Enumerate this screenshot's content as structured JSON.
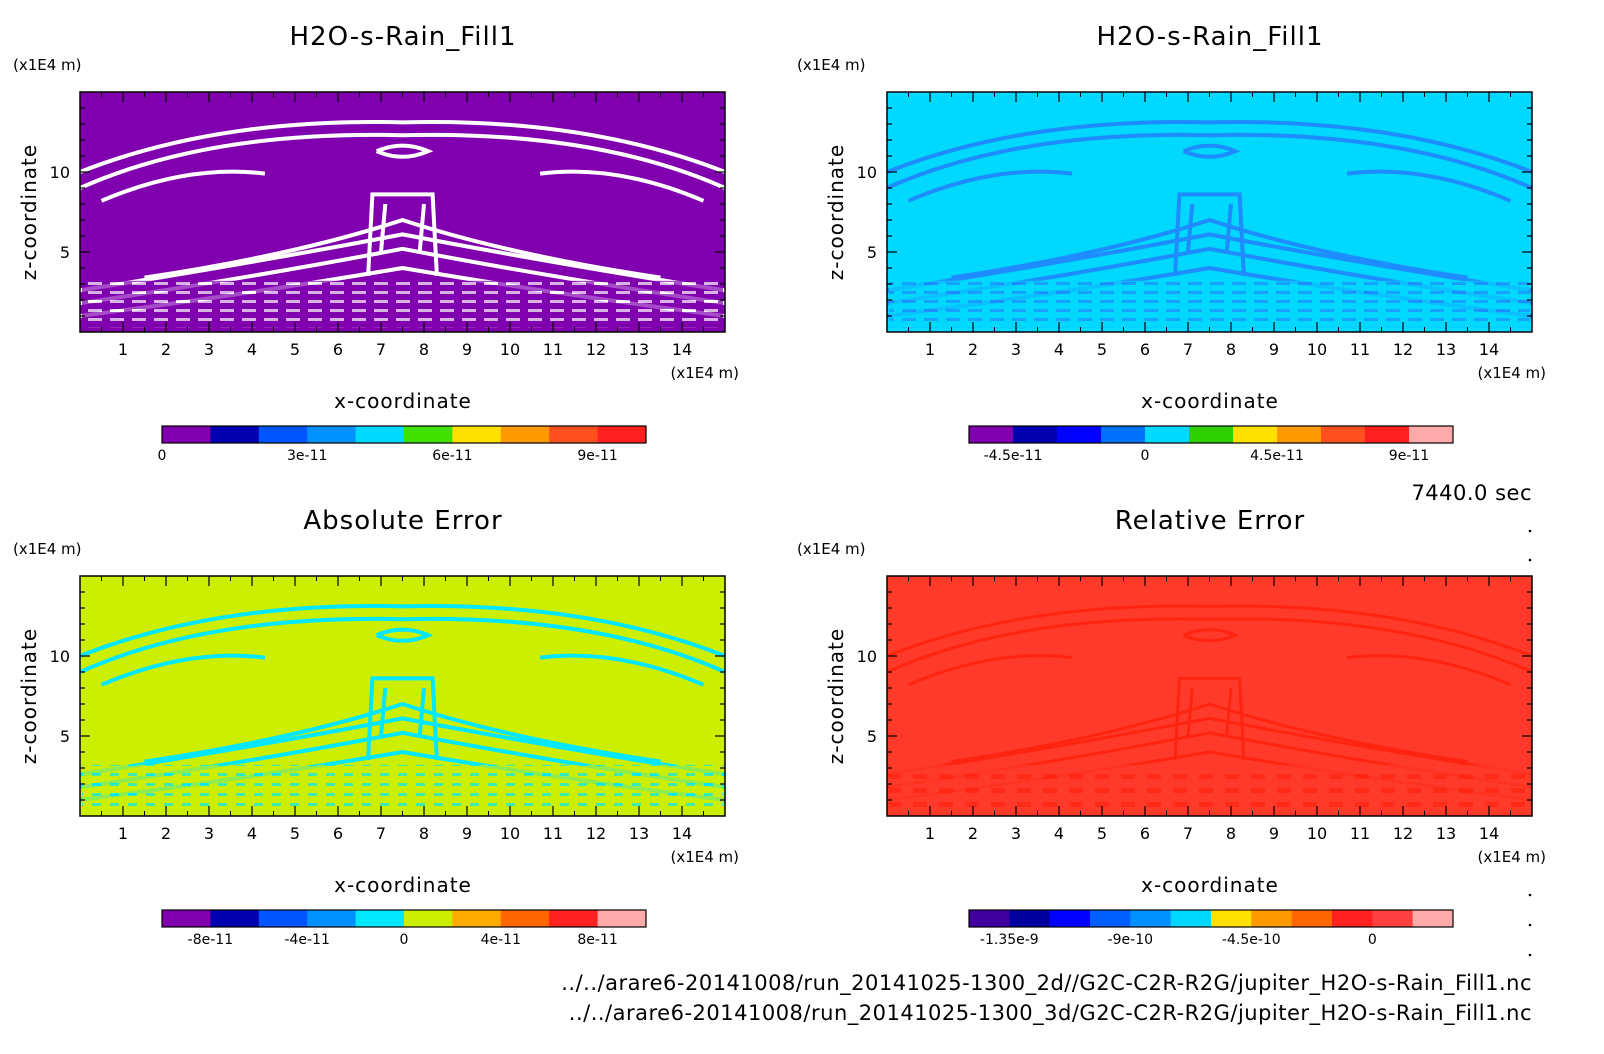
{
  "timestamp": "7440.0 sec",
  "files": [
    "../../arare6-20141008/run_20141025-1300_2d//G2C-C2R-R2G/jupiter_H2O-s-Rain_Fill1.nc",
    "../../arare6-20141008/run_20141025-1300_3d/G2C-C2R-R2G/jupiter_H2O-s-Rain_Fill1.nc"
  ],
  "chart_data": [
    {
      "type": "heatmap",
      "title": "H2O-s-Rain_Fill1",
      "xlabel": "x-coordinate",
      "ylabel": "z-coordinate",
      "x_unit": "(x1E4 m)",
      "y_unit": "(x1E4 m)",
      "xlim": [
        0,
        15
      ],
      "ylim": [
        0,
        15
      ],
      "x_ticks": [
        "1",
        "2",
        "3",
        "4",
        "5",
        "6",
        "7",
        "8",
        "9",
        "10",
        "11",
        "12",
        "13",
        "14"
      ],
      "y_ticks": [
        "5",
        "10"
      ],
      "background_color": "#8000b0",
      "pattern_color": "#ffffff",
      "colorbar": {
        "colors": [
          "#8000b0",
          "#0000b0",
          "#0055ff",
          "#0090ff",
          "#00d8ff",
          "#40e000",
          "#ffe000",
          "#ff9900",
          "#ff5020",
          "#ff2020"
        ],
        "labels": [
          "0",
          "3e-11",
          "6e-11",
          "9e-11"
        ]
      }
    },
    {
      "type": "heatmap",
      "title": "H2O-s-Rain_Fill1",
      "xlabel": "x-coordinate",
      "ylabel": "z-coordinate",
      "x_unit": "(x1E4 m)",
      "y_unit": "(x1E4 m)",
      "xlim": [
        0,
        15
      ],
      "ylim": [
        0,
        15
      ],
      "x_ticks": [
        "1",
        "2",
        "3",
        "4",
        "5",
        "6",
        "7",
        "8",
        "9",
        "10",
        "11",
        "12",
        "13",
        "14"
      ],
      "y_ticks": [
        "5",
        "10"
      ],
      "background_color": "#00d8ff",
      "pattern_color": "#1e8cff",
      "colorbar": {
        "colors": [
          "#8000b0",
          "#0000b0",
          "#0000ff",
          "#0070ff",
          "#00d8ff",
          "#30d000",
          "#ffe000",
          "#ff9900",
          "#ff5020",
          "#ff2020",
          "#ffaaaa"
        ],
        "labels": [
          "-4.5e-11",
          "0",
          "4.5e-11",
          "9e-11"
        ]
      }
    },
    {
      "type": "heatmap",
      "title": "Absolute Error",
      "xlabel": "x-coordinate",
      "ylabel": "z-coordinate",
      "x_unit": "(x1E4 m)",
      "y_unit": "(x1E4 m)",
      "xlim": [
        0,
        15
      ],
      "ylim": [
        0,
        15
      ],
      "x_ticks": [
        "1",
        "2",
        "3",
        "4",
        "5",
        "6",
        "7",
        "8",
        "9",
        "10",
        "11",
        "12",
        "13",
        "14"
      ],
      "y_ticks": [
        "5",
        "10"
      ],
      "background_color": "#ccee00",
      "pattern_color": "#00e8ff",
      "colorbar": {
        "colors": [
          "#8000b0",
          "#0000b0",
          "#0055ff",
          "#0090ff",
          "#00e8ff",
          "#ccee00",
          "#ffaa00",
          "#ff6600",
          "#ff2020",
          "#ffaaaa"
        ],
        "labels": [
          "-8e-11",
          "-4e-11",
          "0",
          "4e-11",
          "8e-11"
        ]
      }
    },
    {
      "type": "heatmap",
      "title": "Relative Error",
      "xlabel": "x-coordinate",
      "ylabel": "z-coordinate",
      "x_unit": "(x1E4 m)",
      "y_unit": "(x1E4 m)",
      "xlim": [
        0,
        15
      ],
      "ylim": [
        0,
        15
      ],
      "x_ticks": [
        "1",
        "2",
        "3",
        "4",
        "5",
        "6",
        "7",
        "8",
        "9",
        "10",
        "11",
        "12",
        "13",
        "14"
      ],
      "y_ticks": [
        "5",
        "10"
      ],
      "background_color": "#ff3a2a",
      "pattern_color": "#ff2410",
      "colorbar": {
        "colors": [
          "#4000a0",
          "#0000a0",
          "#0000ff",
          "#0060ff",
          "#0090ff",
          "#00d8ff",
          "#ffe000",
          "#ff9900",
          "#ff6600",
          "#ff2020",
          "#ff4040",
          "#ffaaaa"
        ],
        "labels": [
          "-1.35e-9",
          "-9e-10",
          "-4.5e-10",
          "0"
        ]
      }
    }
  ]
}
